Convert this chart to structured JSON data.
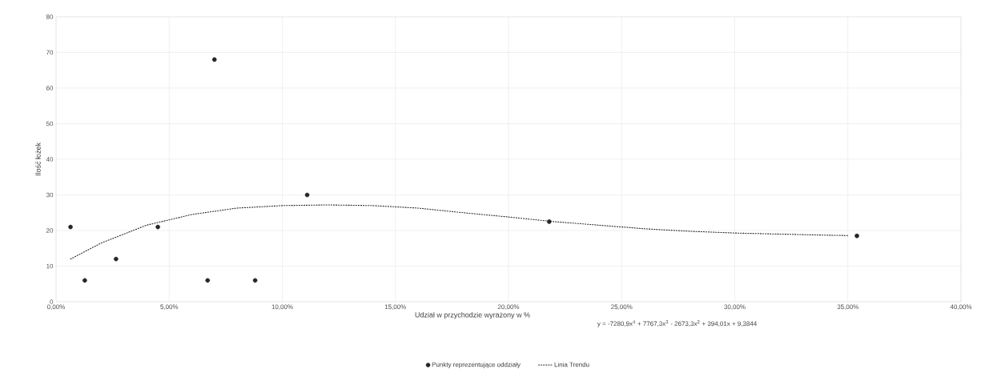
{
  "chart_data": {
    "type": "scatter",
    "xlabel": "Udział w przychodzie wyrażony w %",
    "ylabel": "Ilość łożek",
    "annotations": [
      "y = -7280,9x$^{4}$ + 7767,3x$^{3}$ - 2673,3x$^{2}$ + 394,01x + 9,3844"
    ],
    "series": [
      {
        "name": "Punkty reprezentujące oddziały",
        "type": "scatter",
        "marker": "circle",
        "color": "#262626",
        "x": [
          0.64,
          1.27,
          2.65,
          4.5,
          6.7,
          7.0,
          8.8,
          11.1,
          21.8,
          35.4
        ],
        "values": [
          21,
          6,
          12,
          21,
          6,
          68,
          6,
          30,
          22.5,
          18.5
        ]
      },
      {
        "name": "Linia Trendu",
        "type": "line",
        "marker": "none",
        "line_style": "dotted",
        "color": "#262626",
        "x": [
          0.64,
          2,
          4,
          6,
          8,
          10,
          12,
          14,
          16,
          18,
          20,
          22,
          24,
          26,
          28,
          30,
          32,
          34,
          35
        ],
        "values": [
          12,
          16.5,
          21.5,
          24.5,
          26.3,
          27,
          27.2,
          27,
          26.3,
          25,
          23.8,
          22.5,
          21.5,
          20.5,
          19.8,
          19.3,
          19,
          18.7,
          18.6
        ]
      }
    ],
    "xlim": [
      0,
      40
    ],
    "ylim": [
      0,
      80
    ],
    "xticks": [
      {
        "value": 0,
        "label": "0,00%"
      },
      {
        "value": 5,
        "label": "5,00%"
      },
      {
        "value": 10,
        "label": "10,00%"
      },
      {
        "value": 15,
        "label": "15,00%"
      },
      {
        "value": 20,
        "label": "20,00%"
      },
      {
        "value": 25,
        "label": "25,00%"
      },
      {
        "value": 30,
        "label": "30,00%"
      },
      {
        "value": 35,
        "label": "35,00%"
      },
      {
        "value": 40,
        "label": "40,00%"
      }
    ],
    "yticks": [
      0,
      10,
      20,
      30,
      40,
      50,
      60,
      70,
      80
    ],
    "grid": true,
    "legend": "bottom"
  }
}
